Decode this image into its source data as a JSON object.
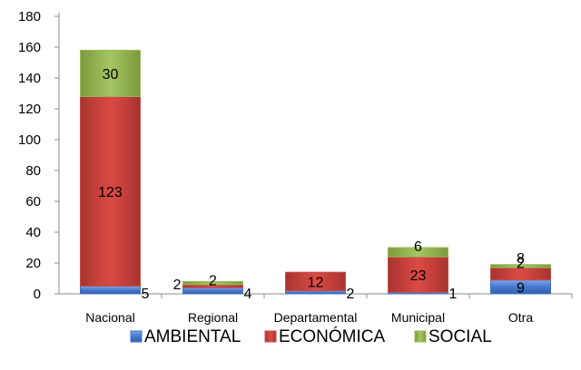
{
  "chart_data": {
    "type": "bar",
    "stacked": true,
    "categories": [
      "Nacional",
      "Regional",
      "Departamental",
      "Municipal",
      "Otra"
    ],
    "series": [
      {
        "name": "AMBIENTAL",
        "values": [
          5,
          4,
          2,
          1,
          9
        ],
        "color": "#4472c4"
      },
      {
        "name": "ECONÓMICA",
        "values": [
          123,
          2,
          12,
          23,
          8
        ],
        "color": "#c0504d"
      },
      {
        "name": "SOCIAL",
        "values": [
          30,
          2,
          0,
          6,
          2
        ],
        "color": "#9bbb59"
      }
    ],
    "ylim": [
      0,
      180
    ],
    "yticks": [
      0,
      20,
      40,
      60,
      80,
      100,
      120,
      140,
      160,
      180
    ],
    "grid": false,
    "legend_position": "bottom",
    "title": "",
    "xlabel": "",
    "ylabel": ""
  }
}
